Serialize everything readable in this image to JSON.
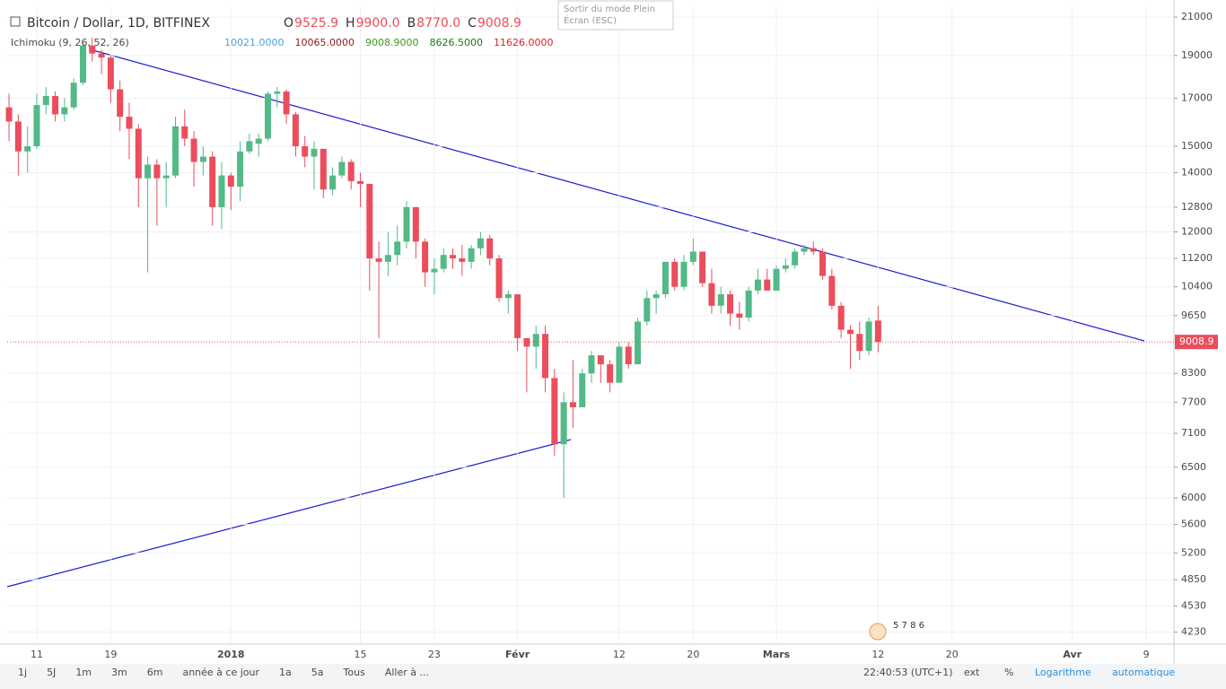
{
  "header": {
    "title": "Bitcoin / Dollar, 1D, BITFINEX",
    "ohlc": [
      {
        "key": "O",
        "value": "9525.9"
      },
      {
        "key": "H",
        "value": "9900.0"
      },
      {
        "key": "B",
        "value": "8770.0"
      },
      {
        "key": "C",
        "value": "9008.9"
      }
    ],
    "indicator": "Ichimoku (9, 26, 52, 26)",
    "indicator_values": [
      {
        "text": "10021.0000",
        "color": "#4aa3df"
      },
      {
        "text": "10065.0000",
        "color": "#8b1a1a"
      },
      {
        "text": "9008.9000",
        "color": "#3a9a20"
      },
      {
        "text": "8626.5000",
        "color": "#1a7a1a"
      },
      {
        "text": "11626.0000",
        "color": "#e0202a"
      }
    ]
  },
  "tooltip": [
    "Sortir du mode Plein",
    "Écran (ESC)"
  ],
  "badge": "5 7 8 6",
  "toolbar": {
    "left": [
      "1j",
      "5J",
      "1m",
      "3m",
      "6m",
      "année à ce jour",
      "1a",
      "5a",
      "Tous",
      "Aller à ..."
    ],
    "time": "22:40:53 (UTC+1)",
    "right": [
      "ext",
      "%",
      "Logarithme",
      "automatique"
    ]
  },
  "chart_data": {
    "type": "candlestick",
    "log_scale": true,
    "up_color": "#53b987",
    "down_color": "#eb4d5c",
    "ylim": [
      4100,
      21550
    ],
    "yticks": [
      4230,
      4530,
      4850,
      5200,
      5600,
      6000,
      6500,
      7100,
      7700,
      8300,
      9650,
      10400,
      11200,
      12000,
      12800,
      14000,
      15000,
      17000,
      19000,
      21000
    ],
    "xlim": [
      -3.2,
      123
    ],
    "xticks": [
      {
        "value": 0,
        "label": "11"
      },
      {
        "value": 8,
        "label": "19"
      },
      {
        "value": 21,
        "label": "2018"
      },
      {
        "value": 35,
        "label": "15"
      },
      {
        "value": 43,
        "label": "23"
      },
      {
        "value": 52,
        "label": "Févr"
      },
      {
        "value": 63,
        "label": "12"
      },
      {
        "value": 71,
        "label": "20"
      },
      {
        "value": 80,
        "label": "Mars"
      },
      {
        "value": 91,
        "label": "12"
      },
      {
        "value": 99,
        "label": "20"
      },
      {
        "value": 112,
        "label": "Avr"
      },
      {
        "value": 120,
        "label": "9"
      }
    ],
    "candles": {
      "x": [
        -3,
        -2,
        -1,
        0,
        1,
        2,
        3,
        4,
        5,
        6,
        7,
        8,
        9,
        10,
        11,
        12,
        13,
        14,
        15,
        16,
        17,
        18,
        19,
        20,
        21,
        22,
        23,
        24,
        25,
        26,
        27,
        28,
        29,
        30,
        31,
        32,
        33,
        34,
        35,
        36,
        37,
        38,
        39,
        40,
        41,
        42,
        43,
        44,
        45,
        46,
        47,
        48,
        49,
        50,
        51,
        52,
        53,
        54,
        55,
        56,
        57,
        58,
        59,
        60,
        61,
        62,
        63,
        64,
        65,
        66,
        67,
        68,
        69,
        70,
        71,
        72,
        73,
        74,
        75,
        76,
        77,
        78,
        79,
        80,
        81,
        82,
        83,
        84,
        85,
        86,
        87,
        88,
        89,
        90,
        91
      ],
      "open": [
        16600,
        16000,
        14800,
        15000,
        16700,
        17100,
        16300,
        16600,
        17700,
        19500,
        19100,
        18900,
        17400,
        16200,
        15700,
        13800,
        14300,
        13800,
        13900,
        15800,
        15300,
        14400,
        14600,
        12800,
        13900,
        13500,
        14800,
        15100,
        15300,
        17200,
        17300,
        16300,
        15000,
        14600,
        14900,
        13400,
        13900,
        14400,
        13700,
        13600,
        11200,
        11100,
        11300,
        11700,
        12800,
        11700,
        10800,
        10900,
        11300,
        11200,
        11100,
        11500,
        11800,
        11200,
        10100,
        10200,
        9100,
        8900,
        9200,
        8200,
        6900,
        7700,
        7600,
        8300,
        8700,
        8500,
        8100,
        8900,
        8500,
        9500,
        10100,
        10200,
        11100,
        10400,
        11100,
        11400,
        10500,
        9900,
        10200,
        9700,
        9600,
        10300,
        10600,
        10300,
        10900,
        11000,
        11400,
        11500,
        11400,
        10700,
        9900,
        9300,
        9200,
        8800,
        9525.9
      ],
      "high": [
        17200,
        16300,
        15800,
        17200,
        17500,
        17300,
        17000,
        17900,
        19700,
        19900,
        19300,
        19000,
        17800,
        16800,
        15900,
        14600,
        14500,
        14400,
        16200,
        16500,
        15600,
        15000,
        14800,
        14400,
        14000,
        15200,
        15500,
        15500,
        17300,
        17500,
        17400,
        16400,
        15400,
        15200,
        14900,
        14200,
        14600,
        14500,
        14000,
        13600,
        11700,
        12000,
        12200,
        13000,
        12800,
        11800,
        11200,
        11500,
        11500,
        11600,
        11600,
        12000,
        11900,
        11300,
        10300,
        10200,
        9100,
        9400,
        9400,
        8400,
        7900,
        8600,
        8400,
        8800,
        8700,
        8600,
        9000,
        9000,
        9600,
        10300,
        10300,
        11100,
        11200,
        11300,
        11800,
        11400,
        10900,
        10400,
        10300,
        10000,
        10400,
        10900,
        10900,
        11000,
        11200,
        11500,
        11600,
        11700,
        11500,
        10900,
        10000,
        9400,
        9500,
        9600,
        9900
      ],
      "low": [
        15200,
        13900,
        14000,
        14900,
        16300,
        16000,
        16000,
        16500,
        17600,
        18700,
        18100,
        16800,
        15600,
        14500,
        12800,
        10800,
        12200,
        12800,
        13800,
        15000,
        13500,
        13900,
        12200,
        12100,
        12700,
        13000,
        14700,
        14600,
        15200,
        16600,
        15900,
        14600,
        14200,
        13400,
        13100,
        13200,
        13800,
        13400,
        12800,
        10300,
        9100,
        10700,
        11000,
        11500,
        11200,
        10400,
        10200,
        10800,
        10900,
        10700,
        10900,
        11300,
        11000,
        10000,
        9700,
        8800,
        7900,
        8400,
        7900,
        6700,
        6000,
        7200,
        7600,
        8100,
        8100,
        7900,
        8100,
        8400,
        8500,
        9400,
        9700,
        10100,
        10300,
        10300,
        11000,
        10400,
        9700,
        9700,
        9400,
        9300,
        9500,
        10200,
        10300,
        10300,
        10800,
        10900,
        11300,
        11300,
        10600,
        9800,
        9100,
        8400,
        8600,
        8700,
        8770
      ],
      "close": [
        16000,
        14800,
        15000,
        16700,
        17100,
        16300,
        16600,
        17700,
        19500,
        19100,
        18900,
        17400,
        16200,
        15700,
        13800,
        14300,
        13800,
        13900,
        15800,
        15300,
        14400,
        14600,
        12800,
        13900,
        13500,
        14800,
        15200,
        15300,
        17200,
        17300,
        16300,
        15000,
        14600,
        14900,
        13400,
        13900,
        14400,
        13700,
        13600,
        11200,
        11100,
        11300,
        11700,
        12800,
        11700,
        10800,
        10900,
        11300,
        11200,
        11100,
        11500,
        11800,
        11200,
        10100,
        10200,
        9100,
        8900,
        9200,
        8200,
        6900,
        7700,
        7600,
        8300,
        8700,
        8500,
        8100,
        8900,
        8500,
        9500,
        10100,
        10200,
        11100,
        10400,
        11100,
        11400,
        10500,
        9900,
        10200,
        9700,
        9600,
        10300,
        10600,
        10300,
        10900,
        11000,
        11400,
        11500,
        11400,
        10700,
        9900,
        9300,
        9200,
        8800,
        9500,
        9008.9
      ]
    }
  }
}
